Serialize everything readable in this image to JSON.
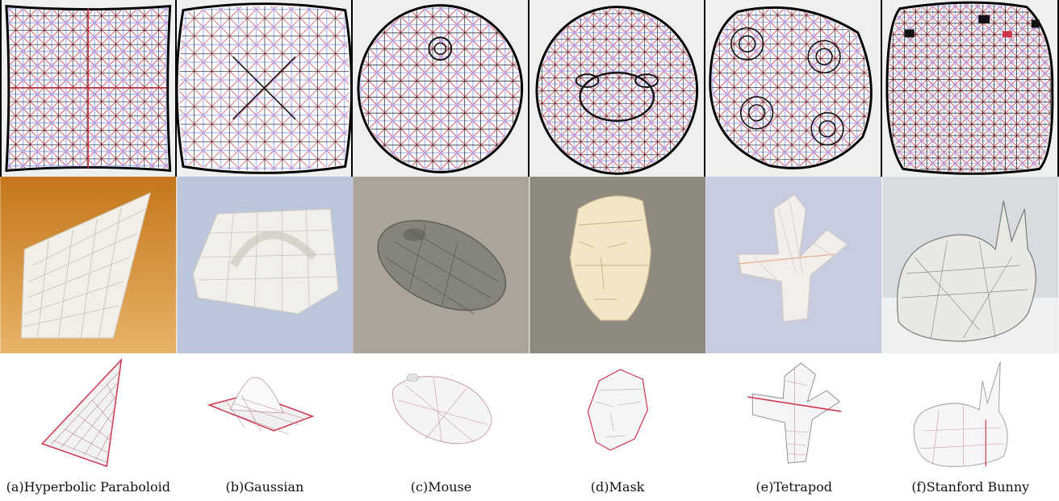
{
  "figure": {
    "captions": [
      "(a)Hyperbolic Paraboloid",
      "(b)Gaussian",
      "(c)Mouse",
      "(d)Mask",
      "(e)Tetrapod",
      "(f)Stanford Bunny"
    ],
    "photo_backgrounds": [
      "#d9902e",
      "#b9c3d8",
      "#a9a39a",
      "#8f8a80",
      "#c6cbe0",
      "#d7dadf"
    ],
    "colors": {
      "crease_red": "#d0344a",
      "crease_blue": "#a9b6ff",
      "paper": "#f4f2ee",
      "outline": "#000000"
    }
  }
}
